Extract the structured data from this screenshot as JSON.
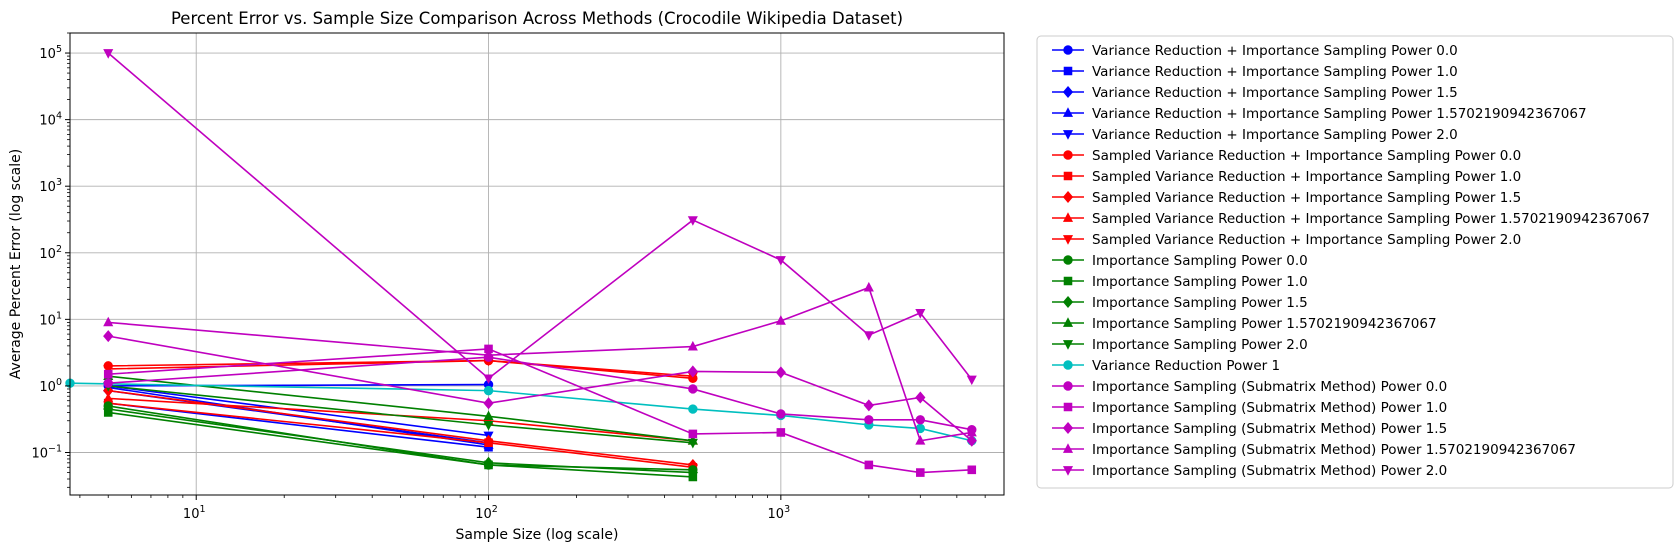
{
  "chart_data": {
    "type": "line",
    "title": "Percent Error vs. Sample Size Comparison Across Methods (Crocodile Wikipedia Dataset)",
    "xlabel": "Sample Size (log scale)",
    "ylabel": "Average Percent Error (log scale)",
    "xscale": "log",
    "yscale": "log",
    "xlim": [
      3.7,
      5800
    ],
    "ylim": [
      0.023,
      200000
    ],
    "x_ticks": [
      {
        "value": 10,
        "base": "10",
        "exp": "1"
      },
      {
        "value": 100,
        "base": "10",
        "exp": "2"
      },
      {
        "value": 1000,
        "base": "10",
        "exp": "3"
      }
    ],
    "y_ticks": [
      {
        "value": 0.1,
        "base": "10",
        "exp": "−1"
      },
      {
        "value": 1,
        "base": "10",
        "exp": "0"
      },
      {
        "value": 10,
        "base": "10",
        "exp": "1"
      },
      {
        "value": 100,
        "base": "10",
        "exp": "2"
      },
      {
        "value": 1000,
        "base": "10",
        "exp": "3"
      },
      {
        "value": 10000,
        "base": "10",
        "exp": "4"
      },
      {
        "value": 100000,
        "base": "10",
        "exp": "5"
      }
    ],
    "grid": true,
    "legend_position": "outside-right",
    "series": [
      {
        "name": "Variance Reduction + Importance Sampling Power 0.0",
        "color": "#0000ff",
        "marker": "circle",
        "x": [
          5,
          100
        ],
        "y": [
          1.0,
          1.05
        ]
      },
      {
        "name": "Variance Reduction + Importance Sampling Power 1.0",
        "color": "#0000ff",
        "marker": "square",
        "x": [
          5,
          100
        ],
        "y": [
          0.55,
          0.12
        ]
      },
      {
        "name": "Variance Reduction + Importance Sampling Power 1.5",
        "color": "#0000ff",
        "marker": "diamond",
        "x": [
          5,
          100
        ],
        "y": [
          0.85,
          0.14
        ]
      },
      {
        "name": "Variance Reduction + Importance Sampling Power 1.5702190942367067",
        "color": "#0000ff",
        "marker": "triangle-up",
        "x": [
          5,
          100
        ],
        "y": [
          0.95,
          0.13
        ]
      },
      {
        "name": "Variance Reduction + Importance Sampling Power 2.0",
        "color": "#0000ff",
        "marker": "triangle-down",
        "x": [
          5,
          100
        ],
        "y": [
          1.0,
          0.18
        ]
      },
      {
        "name": "Sampled Variance Reduction + Importance Sampling Power 0.0",
        "color": "#ff0000",
        "marker": "circle",
        "x": [
          5,
          100,
          500
        ],
        "y": [
          2.0,
          2.4,
          1.3
        ]
      },
      {
        "name": "Sampled Variance Reduction + Importance Sampling Power 1.0",
        "color": "#ff0000",
        "marker": "square",
        "x": [
          5,
          100,
          500
        ],
        "y": [
          0.55,
          0.14,
          0.06
        ]
      },
      {
        "name": "Sampled Variance Reduction + Importance Sampling Power 1.5",
        "color": "#ff0000",
        "marker": "diamond",
        "x": [
          5,
          100,
          500
        ],
        "y": [
          0.85,
          0.15,
          0.065
        ]
      },
      {
        "name": "Sampled Variance Reduction + Importance Sampling Power 1.5702190942367067",
        "color": "#ff0000",
        "marker": "triangle-up",
        "x": [
          5,
          100,
          500
        ],
        "y": [
          0.65,
          0.3,
          0.15
        ]
      },
      {
        "name": "Sampled Variance Reduction + Importance Sampling Power 2.0",
        "color": "#ff0000",
        "marker": "triangle-down",
        "x": [
          5,
          100,
          500
        ],
        "y": [
          1.8,
          2.4,
          1.4
        ]
      },
      {
        "name": "Importance Sampling Power 0.0",
        "color": "#008000",
        "marker": "circle",
        "x": [
          5,
          100,
          500
        ],
        "y": [
          0.5,
          0.065,
          0.055
        ]
      },
      {
        "name": "Importance Sampling Power 1.0",
        "color": "#008000",
        "marker": "square",
        "x": [
          5,
          100,
          500
        ],
        "y": [
          0.4,
          0.065,
          0.043
        ]
      },
      {
        "name": "Importance Sampling Power 1.5",
        "color": "#008000",
        "marker": "diamond",
        "x": [
          5,
          100,
          500
        ],
        "y": [
          0.45,
          0.07,
          0.05
        ]
      },
      {
        "name": "Importance Sampling Power 1.5702190942367067",
        "color": "#008000",
        "marker": "triangle-up",
        "x": [
          5,
          100,
          500
        ],
        "y": [
          1.4,
          0.35,
          0.15
        ]
      },
      {
        "name": "Importance Sampling Power 2.0",
        "color": "#008000",
        "marker": "triangle-down",
        "x": [
          5,
          100,
          500
        ],
        "y": [
          1.0,
          0.26,
          0.14
        ]
      },
      {
        "name": "Variance Reduction Power 1",
        "color": "#00bfbf",
        "marker": "circle",
        "x": [
          3.7,
          100,
          500,
          1000,
          2000,
          3000,
          4500
        ],
        "y": [
          1.1,
          0.85,
          0.45,
          0.36,
          0.26,
          0.23,
          0.15
        ]
      },
      {
        "name": "Importance Sampling (Submatrix Method) Power 0.0",
        "color": "#bf00bf",
        "marker": "circle",
        "x": [
          5,
          100,
          500,
          1000,
          2000,
          3000,
          4500
        ],
        "y": [
          1.1,
          2.7,
          0.9,
          0.38,
          0.31,
          0.31,
          0.22
        ]
      },
      {
        "name": "Importance Sampling (Submatrix Method) Power 1.0",
        "color": "#bf00bf",
        "marker": "square",
        "x": [
          5,
          100,
          500,
          1000,
          2000,
          3000,
          4500
        ],
        "y": [
          1.5,
          3.6,
          0.19,
          0.2,
          0.065,
          0.05,
          0.055
        ]
      },
      {
        "name": "Importance Sampling (Submatrix Method) Power 1.5",
        "color": "#bf00bf",
        "marker": "diamond",
        "x": [
          5,
          100,
          500,
          1000,
          2000,
          3000,
          4500
        ],
        "y": [
          5.6,
          0.55,
          1.65,
          1.6,
          0.51,
          0.67,
          0.15
        ]
      },
      {
        "name": "Importance Sampling (Submatrix Method) Power 1.5702190942367067",
        "color": "#bf00bf",
        "marker": "triangle-up",
        "x": [
          5,
          100,
          500,
          1000,
          2000,
          3000,
          4500
        ],
        "y": [
          9.0,
          2.9,
          3.9,
          9.5,
          30,
          0.15,
          0.2
        ]
      },
      {
        "name": "Importance Sampling (Submatrix Method) Power 2.0",
        "color": "#bf00bf",
        "marker": "triangle-down",
        "x": [
          5,
          100,
          500,
          1000,
          2000,
          3000,
          4500
        ],
        "y": [
          100000,
          1.3,
          310,
          78,
          5.8,
          12.5,
          1.25
        ]
      }
    ]
  }
}
